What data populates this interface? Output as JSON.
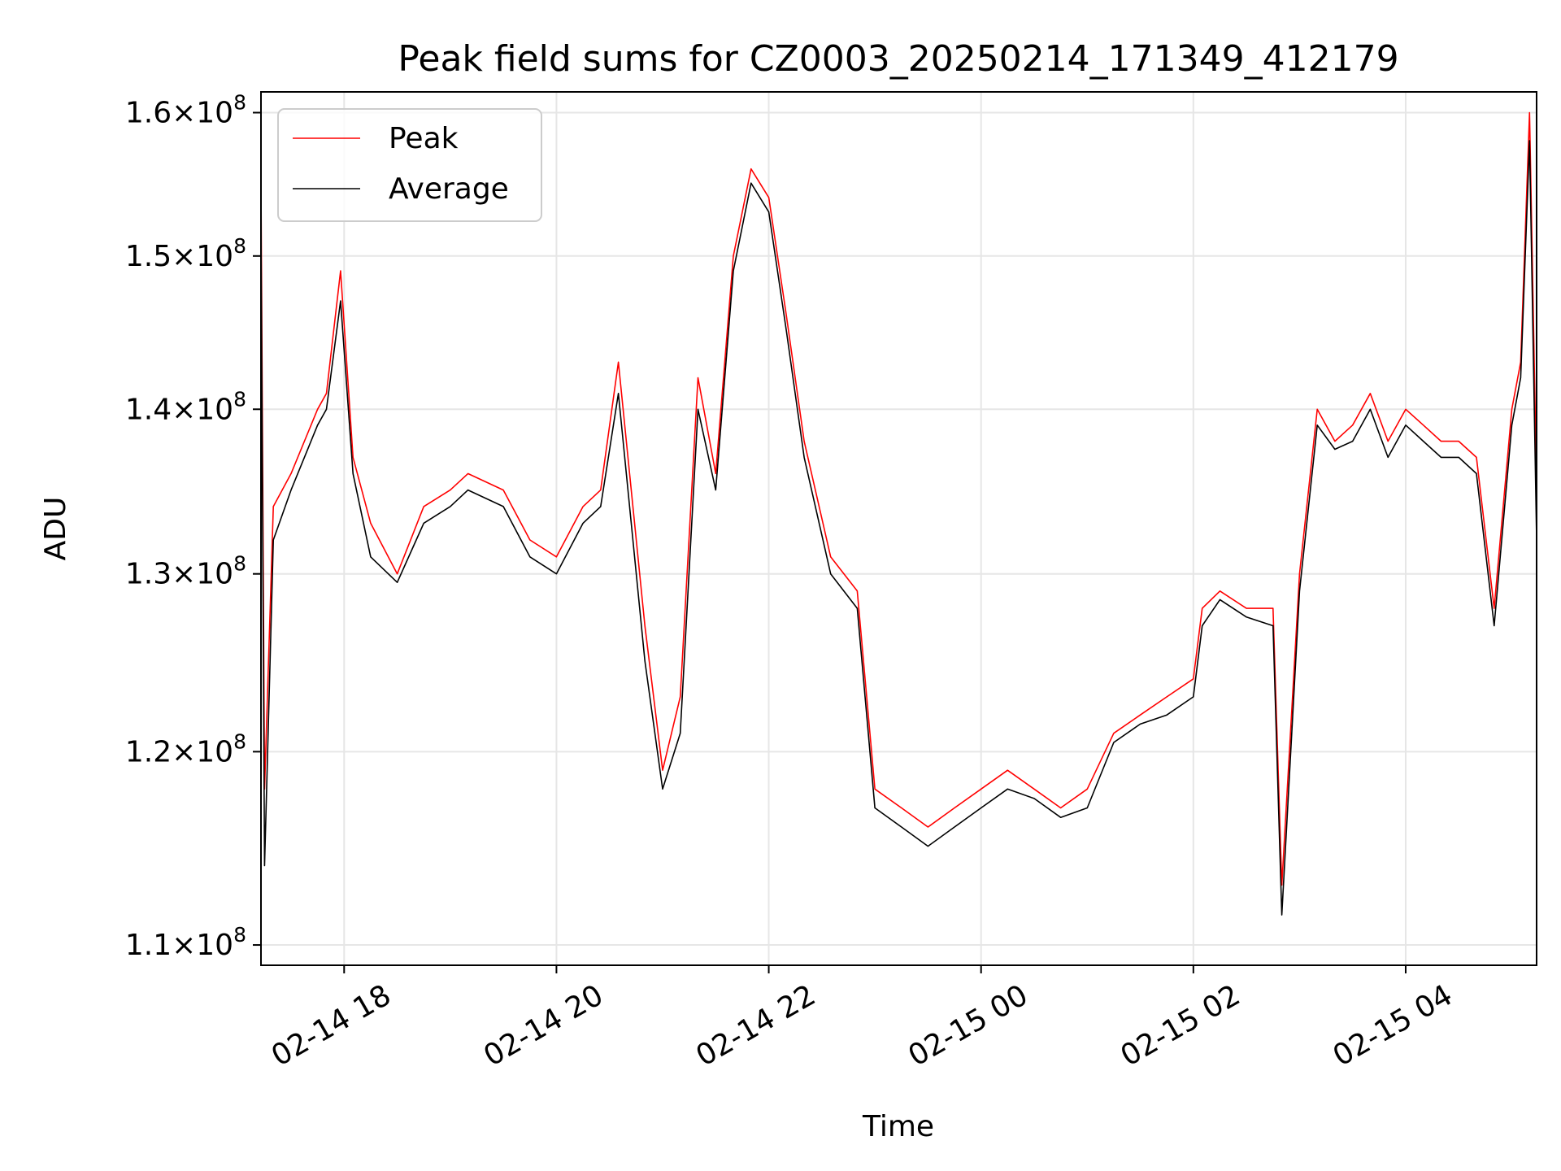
{
  "chart_data": {
    "type": "line",
    "title": "Peak field sums for CZ0003_20250214_171349_412179",
    "xlabel": "Time",
    "ylabel": "ADU",
    "x_range": [
      "2025-02-14T17:13",
      "2025-02-15T05:14"
    ],
    "ylim": [
      109000000,
      161500000
    ],
    "y_scale": "log",
    "grid": true,
    "legend_position": "top-left",
    "x_ticks": [
      {
        "value": "2025-02-14T18:00",
        "label": "02-14 18"
      },
      {
        "value": "2025-02-14T20:00",
        "label": "02-14 20"
      },
      {
        "value": "2025-02-14T22:00",
        "label": "02-14 22"
      },
      {
        "value": "2025-02-15T00:00",
        "label": "02-15 00"
      },
      {
        "value": "2025-02-15T02:00",
        "label": "02-15 02"
      },
      {
        "value": "2025-02-15T04:00",
        "label": "02-15 04"
      }
    ],
    "y_ticks": [
      {
        "value": 110000000,
        "mantissa": "1.1",
        "exponent": "8"
      },
      {
        "value": 120000000,
        "mantissa": "1.2",
        "exponent": "8"
      },
      {
        "value": 130000000,
        "mantissa": "1.3",
        "exponent": "8"
      },
      {
        "value": 140000000,
        "mantissa": "1.4",
        "exponent": "8"
      },
      {
        "value": 150000000,
        "mantissa": "1.5",
        "exponent": "8"
      },
      {
        "value": 160000000,
        "mantissa": "1.6",
        "exponent": "8"
      }
    ],
    "tick_times_label": "×10",
    "series": [
      {
        "name": "Peak",
        "color": "#ff0000",
        "x": [
          "2025-02-14T17:13",
          "2025-02-14T17:15",
          "2025-02-14T17:20",
          "2025-02-14T17:30",
          "2025-02-14T17:45",
          "2025-02-14T17:50",
          "2025-02-14T17:58",
          "2025-02-14T18:05",
          "2025-02-14T18:15",
          "2025-02-14T18:30",
          "2025-02-14T18:45",
          "2025-02-14T19:00",
          "2025-02-14T19:10",
          "2025-02-14T19:30",
          "2025-02-14T19:45",
          "2025-02-14T20:00",
          "2025-02-14T20:15",
          "2025-02-14T20:25",
          "2025-02-14T20:35",
          "2025-02-14T20:50",
          "2025-02-14T21:00",
          "2025-02-14T21:10",
          "2025-02-14T21:20",
          "2025-02-14T21:30",
          "2025-02-14T21:40",
          "2025-02-14T21:50",
          "2025-02-14T22:00",
          "2025-02-14T22:10",
          "2025-02-14T22:20",
          "2025-02-14T22:35",
          "2025-02-14T22:50",
          "2025-02-14T23:00",
          "2025-02-14T23:15",
          "2025-02-14T23:30",
          "2025-02-14T23:45",
          "2025-02-15T00:00",
          "2025-02-15T00:15",
          "2025-02-15T00:30",
          "2025-02-15T00:45",
          "2025-02-15T01:00",
          "2025-02-15T01:15",
          "2025-02-15T01:30",
          "2025-02-15T01:45",
          "2025-02-15T02:00",
          "2025-02-15T02:05",
          "2025-02-15T02:15",
          "2025-02-15T02:30",
          "2025-02-15T02:45",
          "2025-02-15T02:50",
          "2025-02-15T03:00",
          "2025-02-15T03:10",
          "2025-02-15T03:20",
          "2025-02-15T03:30",
          "2025-02-15T03:40",
          "2025-02-15T03:50",
          "2025-02-15T04:00",
          "2025-02-15T04:10",
          "2025-02-15T04:20",
          "2025-02-15T04:30",
          "2025-02-15T04:40",
          "2025-02-15T04:50",
          "2025-02-15T05:00",
          "2025-02-15T05:05",
          "2025-02-15T05:10",
          "2025-02-15T05:14"
        ],
        "values": [
          155000000,
          118000000,
          134000000,
          136000000,
          140000000,
          141000000,
          149000000,
          137000000,
          133000000,
          130000000,
          134000000,
          135000000,
          136000000,
          135000000,
          132000000,
          131000000,
          134000000,
          135000000,
          143000000,
          127000000,
          119000000,
          123000000,
          142000000,
          136000000,
          150000000,
          156000000,
          154000000,
          146000000,
          138000000,
          131000000,
          129000000,
          118000000,
          117000000,
          116000000,
          117000000,
          118000000,
          119000000,
          118000000,
          117000000,
          118000000,
          121000000,
          122000000,
          123000000,
          124000000,
          128000000,
          129000000,
          128000000,
          128000000,
          113000000,
          130000000,
          140000000,
          138000000,
          139000000,
          141000000,
          138000000,
          140000000,
          139000000,
          138000000,
          138000000,
          137000000,
          128000000,
          140000000,
          143000000,
          160000000,
          135000000
        ]
      },
      {
        "name": "Average",
        "color": "#000000",
        "x": [
          "2025-02-14T17:13",
          "2025-02-14T17:15",
          "2025-02-14T17:20",
          "2025-02-14T17:30",
          "2025-02-14T17:45",
          "2025-02-14T17:50",
          "2025-02-14T17:58",
          "2025-02-14T18:05",
          "2025-02-14T18:15",
          "2025-02-14T18:30",
          "2025-02-14T18:45",
          "2025-02-14T19:00",
          "2025-02-14T19:10",
          "2025-02-14T19:30",
          "2025-02-14T19:45",
          "2025-02-14T20:00",
          "2025-02-14T20:15",
          "2025-02-14T20:25",
          "2025-02-14T20:35",
          "2025-02-14T20:50",
          "2025-02-14T21:00",
          "2025-02-14T21:10",
          "2025-02-14T21:20",
          "2025-02-14T21:30",
          "2025-02-14T21:40",
          "2025-02-14T21:50",
          "2025-02-14T22:00",
          "2025-02-14T22:10",
          "2025-02-14T22:20",
          "2025-02-14T22:35",
          "2025-02-14T22:50",
          "2025-02-14T23:00",
          "2025-02-14T23:15",
          "2025-02-14T23:30",
          "2025-02-14T23:45",
          "2025-02-15T00:00",
          "2025-02-15T00:15",
          "2025-02-15T00:30",
          "2025-02-15T00:45",
          "2025-02-15T01:00",
          "2025-02-15T01:15",
          "2025-02-15T01:30",
          "2025-02-15T01:45",
          "2025-02-15T02:00",
          "2025-02-15T02:05",
          "2025-02-15T02:15",
          "2025-02-15T02:30",
          "2025-02-15T02:45",
          "2025-02-15T02:50",
          "2025-02-15T03:00",
          "2025-02-15T03:10",
          "2025-02-15T03:20",
          "2025-02-15T03:30",
          "2025-02-15T03:40",
          "2025-02-15T03:50",
          "2025-02-15T04:00",
          "2025-02-15T04:10",
          "2025-02-15T04:20",
          "2025-02-15T04:30",
          "2025-02-15T04:40",
          "2025-02-15T04:50",
          "2025-02-15T05:00",
          "2025-02-15T05:05",
          "2025-02-15T05:10",
          "2025-02-15T05:14"
        ],
        "values": [
          152000000,
          114000000,
          132000000,
          135000000,
          139000000,
          140000000,
          147000000,
          136000000,
          131000000,
          129500000,
          133000000,
          134000000,
          135000000,
          134000000,
          131000000,
          130000000,
          133000000,
          134000000,
          141000000,
          125000000,
          118000000,
          121000000,
          140000000,
          135000000,
          149000000,
          155000000,
          153000000,
          145000000,
          137000000,
          130000000,
          128000000,
          117000000,
          116000000,
          115000000,
          116000000,
          117000000,
          118000000,
          117500000,
          116500000,
          117000000,
          120500000,
          121500000,
          122000000,
          123000000,
          127000000,
          128500000,
          127500000,
          127000000,
          111500000,
          129000000,
          139000000,
          137500000,
          138000000,
          140000000,
          137000000,
          139000000,
          138000000,
          137000000,
          137000000,
          136000000,
          127000000,
          139000000,
          142000000,
          158000000,
          132000000
        ]
      }
    ]
  }
}
